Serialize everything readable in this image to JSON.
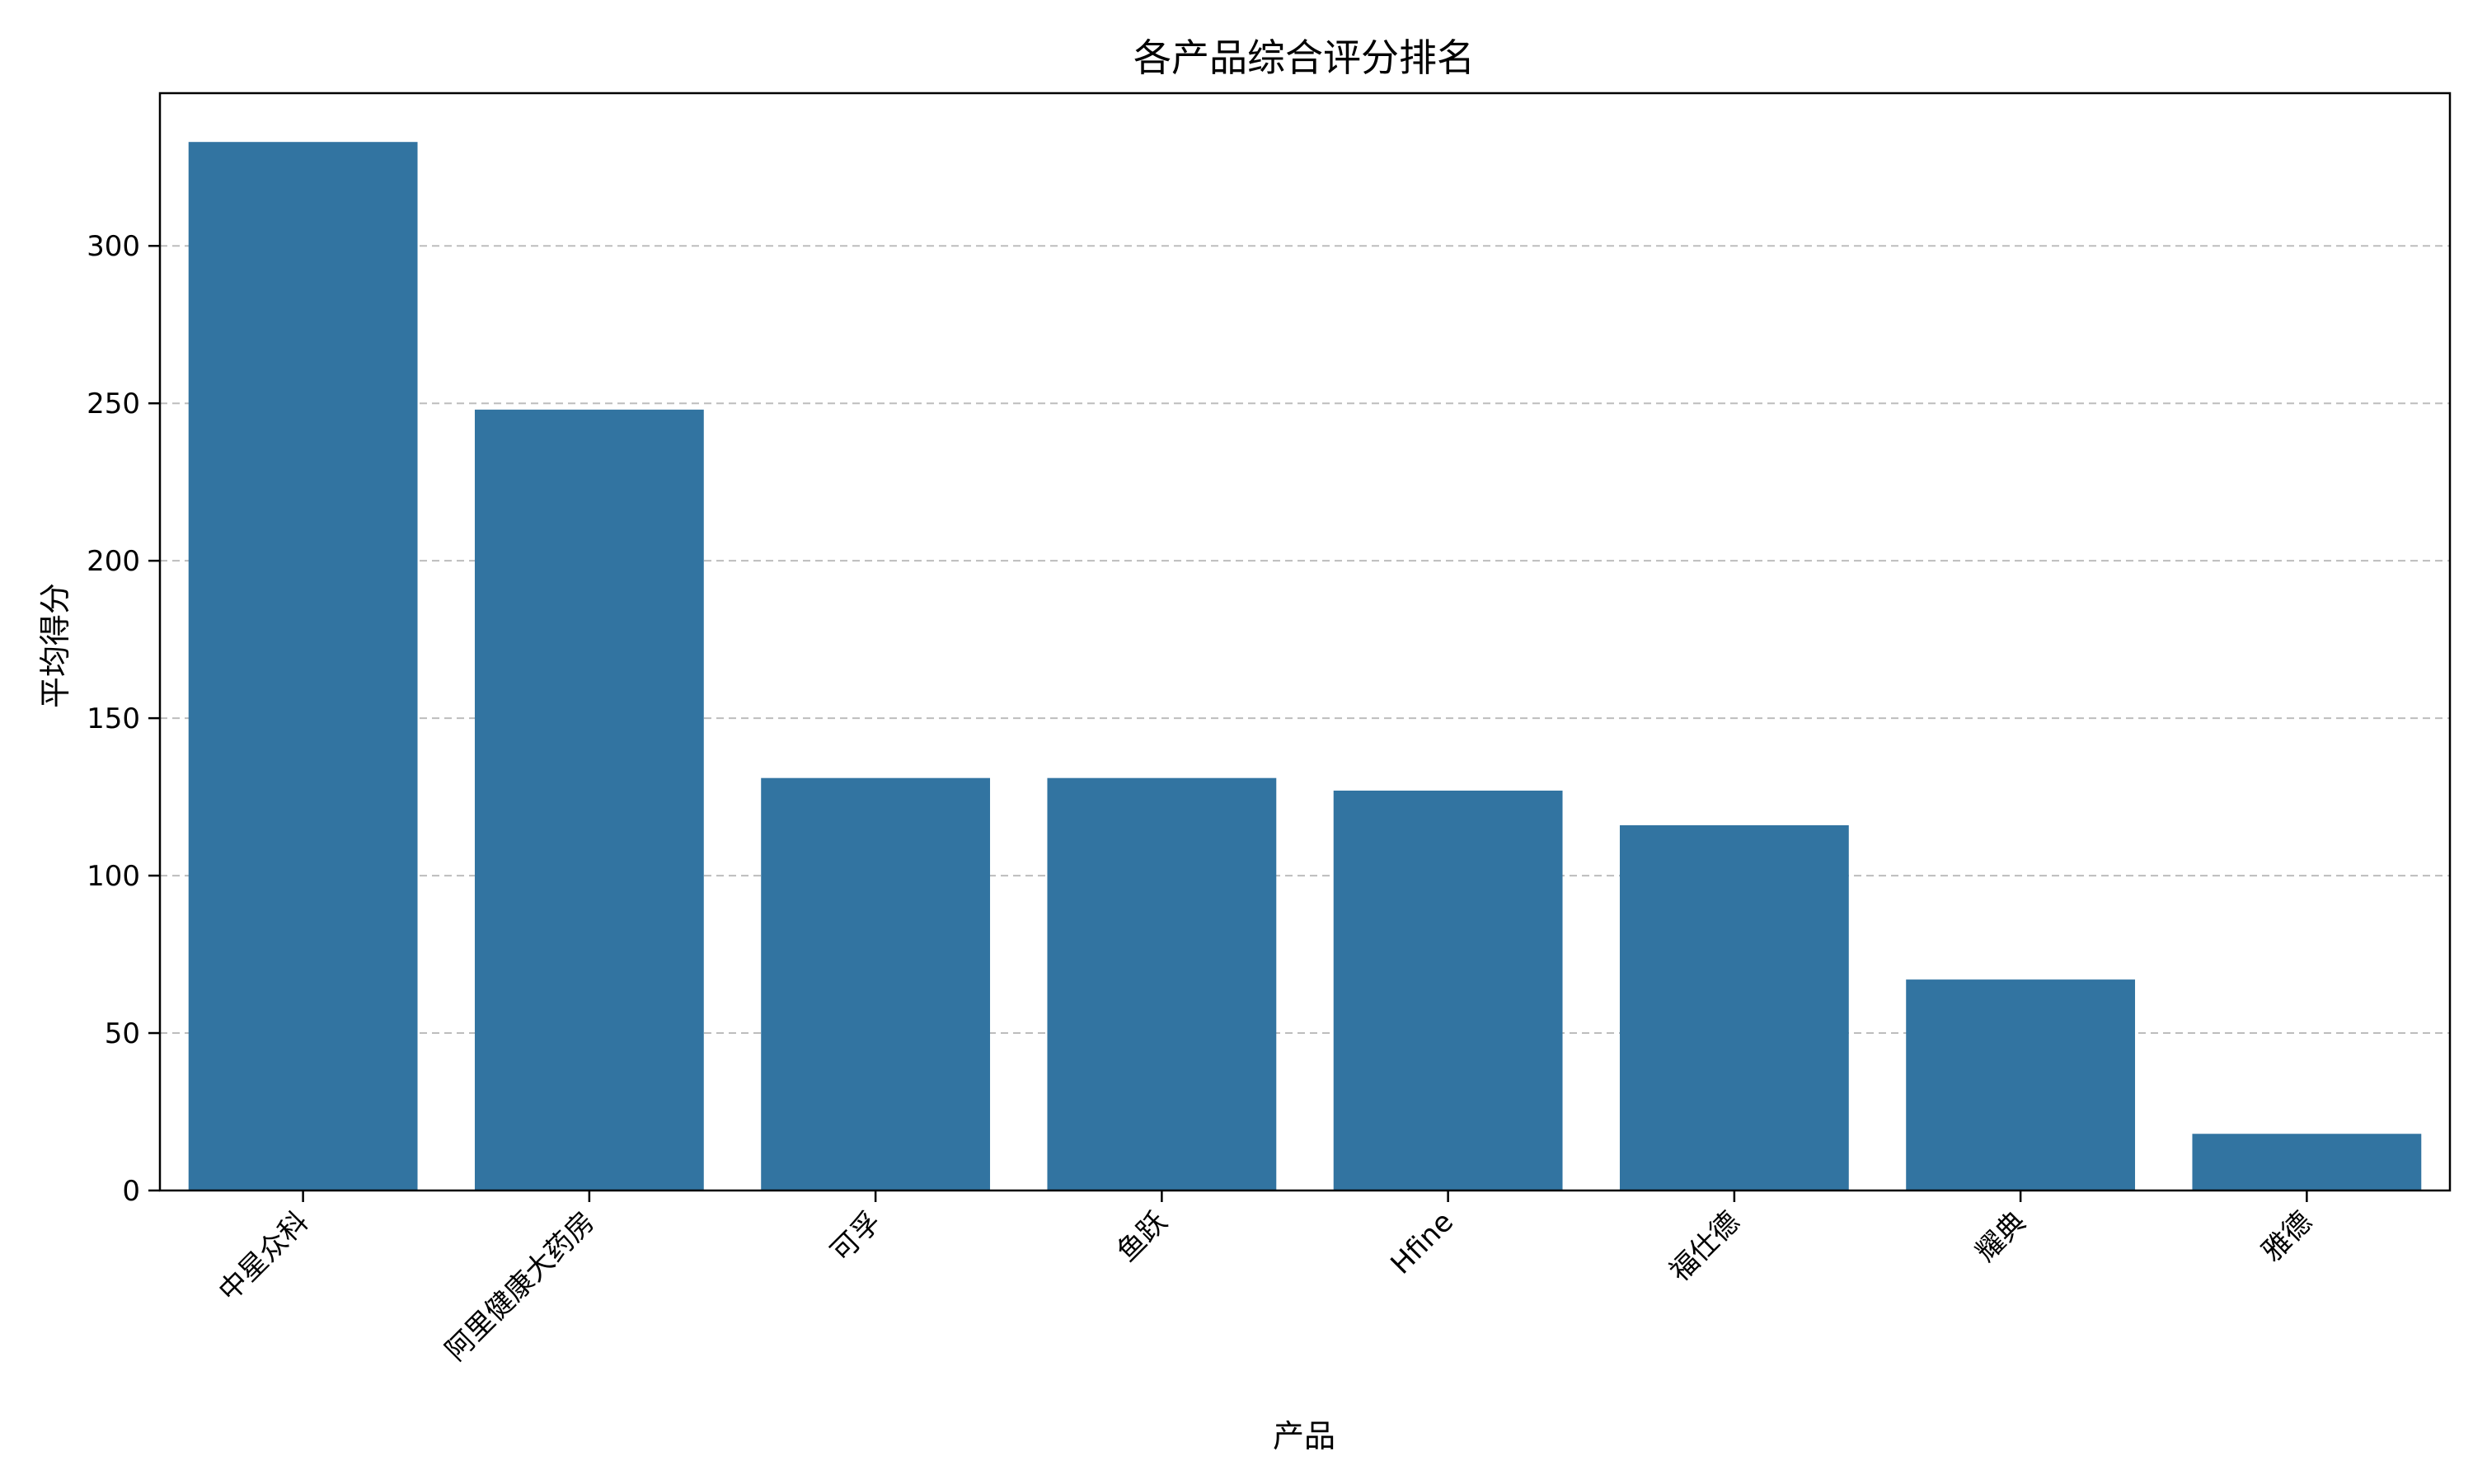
{
  "chart_data": {
    "type": "bar",
    "title": "各产品综合评分排名",
    "xlabel": "产品",
    "ylabel": "平均得分",
    "categories": [
      "中星众科",
      "阿里健康大药房",
      "可孚",
      "鱼跃",
      "Hfine",
      "福仕德",
      "耀典",
      "雅德"
    ],
    "values": [
      333,
      248,
      131,
      131,
      127,
      116,
      67,
      18
    ],
    "ylim": [
      0,
      348.5
    ],
    "yticks": [
      0,
      50,
      100,
      150,
      200,
      250,
      300
    ],
    "grid": "y-dashed",
    "bar_color": "#3274a1",
    "xtick_rotation": 45
  }
}
